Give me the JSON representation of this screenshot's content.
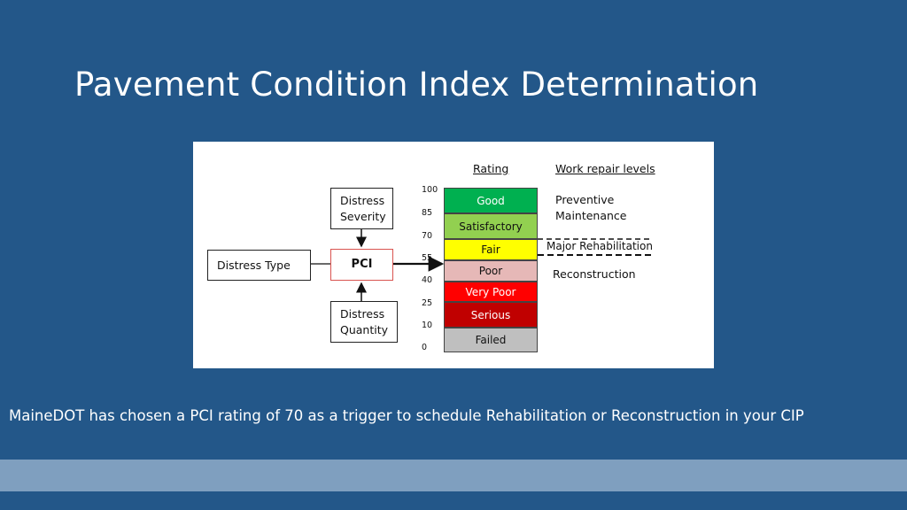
{
  "slide": {
    "title": "Pavement Condition Index Determination",
    "footer": "MaineDOT has chosen a PCI rating of 70 as a trigger to schedule Rehabilitation or Reconstruction in your CIP"
  },
  "diagram": {
    "inputs": {
      "distress_severity": [
        "Distress",
        "Severity"
      ],
      "distress_type": "Distress Type",
      "pci": "PCI",
      "distress_quantity": [
        "Distress",
        "Quantity"
      ]
    },
    "rating_header": "Rating",
    "work_header": "Work repair levels",
    "ticks": [
      "100",
      "85",
      "70",
      "55",
      "40",
      "25",
      "10",
      "0"
    ],
    "bands": [
      {
        "label": "Good",
        "color": "#00b050",
        "text_color": "#ffffff"
      },
      {
        "label": "Satisfactory",
        "color": "#92d050",
        "text_color": "#111111"
      },
      {
        "label": "Fair",
        "color": "#ffff00",
        "text_color": "#111111"
      },
      {
        "label": "Poor",
        "color": "#e6b8b7",
        "text_color": "#111111"
      },
      {
        "label": "Very Poor",
        "color": "#ff0000",
        "text_color": "#ffffff"
      },
      {
        "label": "Serious",
        "color": "#c00000",
        "text_color": "#ffffff"
      },
      {
        "label": "Failed",
        "color": "#bfbfbf",
        "text_color": "#111111"
      }
    ],
    "work_levels": {
      "preventive": [
        "Preventive",
        "Maintenance"
      ],
      "major": "Major Rehabilitation",
      "reconstruction": "Reconstruction"
    }
  }
}
